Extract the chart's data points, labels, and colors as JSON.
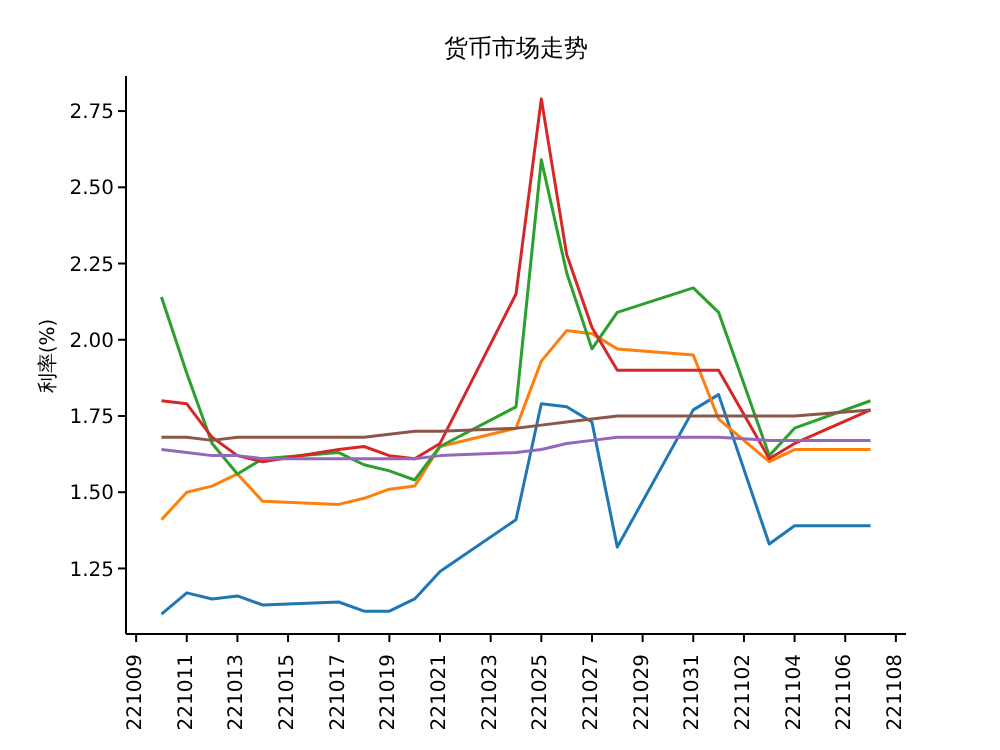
{
  "chart_data": {
    "type": "line",
    "title": "货币市场走势",
    "ylabel": "利率(%)",
    "x": [
      "--10-10",
      "--10-11",
      "--10-12",
      "--10-13",
      "--10-14",
      "--10-17",
      "--10-18",
      "--10-19",
      "--10-20",
      "--10-21",
      "--10-24",
      "--10-25",
      "--10-26",
      "--10-27",
      "--10-28",
      "--10-31",
      "--11-01",
      "--11-03",
      "--11-04",
      "--11-07"
    ],
    "series": [
      {
        "color": "#1f77b4",
        "values": [
          1.1,
          1.17,
          1.15,
          1.16,
          1.13,
          1.14,
          1.11,
          1.11,
          1.15,
          1.24,
          1.41,
          1.79,
          1.78,
          1.73,
          1.32,
          1.77,
          1.82,
          1.33,
          1.39,
          1.39
        ]
      },
      {
        "color": "#ff7f0e",
        "values": [
          1.41,
          1.5,
          1.52,
          1.56,
          1.47,
          1.46,
          1.48,
          1.51,
          1.52,
          1.65,
          1.71,
          1.93,
          2.03,
          2.02,
          1.97,
          1.95,
          1.74,
          1.6,
          1.64,
          1.64
        ]
      },
      {
        "color": "#2ca02c",
        "values": [
          2.14,
          1.89,
          1.66,
          1.56,
          1.61,
          1.63,
          1.59,
          1.57,
          1.54,
          1.65,
          1.78,
          2.59,
          2.22,
          1.97,
          2.09,
          2.17,
          2.09,
          1.62,
          1.71,
          1.8
        ]
      },
      {
        "color": "#d62728",
        "values": [
          1.8,
          1.79,
          1.68,
          1.62,
          1.6,
          1.64,
          1.65,
          1.62,
          1.61,
          1.66,
          2.15,
          2.79,
          2.28,
          2.04,
          1.9,
          1.9,
          1.9,
          1.61,
          1.66,
          1.77
        ]
      },
      {
        "color": "#9467bd",
        "values": [
          1.64,
          1.63,
          1.62,
          1.62,
          1.61,
          1.61,
          1.61,
          1.61,
          1.61,
          1.62,
          1.63,
          1.64,
          1.66,
          1.67,
          1.68,
          1.68,
          1.68,
          1.67,
          1.67,
          1.67
        ]
      },
      {
        "color": "#8c564b",
        "values": [
          1.68,
          1.68,
          1.67,
          1.68,
          1.68,
          1.68,
          1.68,
          1.69,
          1.7,
          1.7,
          1.71,
          1.72,
          1.73,
          1.74,
          1.75,
          1.75,
          1.75,
          1.75,
          1.75,
          1.77
        ]
      }
    ],
    "xlim": [
      "--10-08T14:24",
      "--11-08T09:36"
    ],
    "xticks": [
      {
        "value": "--10-09",
        "label": "221009"
      },
      {
        "value": "--10-11",
        "label": "221011"
      },
      {
        "value": "--10-13",
        "label": "221013"
      },
      {
        "value": "--10-15",
        "label": "221015"
      },
      {
        "value": "--10-17",
        "label": "221017"
      },
      {
        "value": "--10-19",
        "label": "221019"
      },
      {
        "value": "--10-21",
        "label": "221021"
      },
      {
        "value": "--10-23",
        "label": "221023"
      },
      {
        "value": "--10-25",
        "label": "221025"
      },
      {
        "value": "--10-27",
        "label": "221027"
      },
      {
        "value": "--10-29",
        "label": "221029"
      },
      {
        "value": "--10-31",
        "label": "221031"
      },
      {
        "value": "--11-02",
        "label": "221102"
      },
      {
        "value": "--11-04",
        "label": "221104"
      },
      {
        "value": "--11-06",
        "label": "221106"
      },
      {
        "value": "--11-08",
        "label": "221108"
      }
    ],
    "ylim": [
      1.035,
      2.865
    ],
    "yticks": [
      1.25,
      {
        "value": 1.5,
        "label": "1.50"
      },
      1.75,
      {
        "value": 2,
        "label": "2.00"
      },
      2.25,
      {
        "value": 2.5,
        "label": "2.50"
      },
      2.75
    ],
    "grid": false,
    "legend": false,
    "marker": "none",
    "line_style": "solid"
  }
}
